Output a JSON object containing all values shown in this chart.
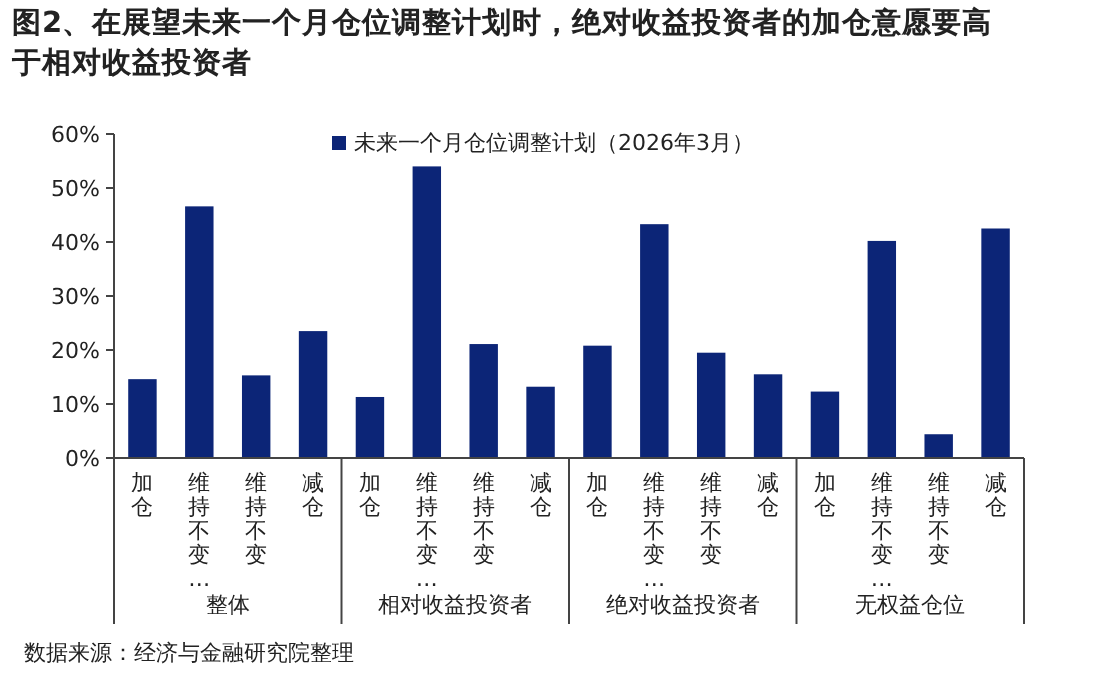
{
  "chart_data": {
    "type": "bar",
    "title": "图2、在展望未来一个月仓位调整计划时，绝对收益投资者的加仓意愿要高于相对收益投资者",
    "categories": [
      "加仓",
      "维持不变…",
      "维持不变",
      "减仓",
      "加仓",
      "维持不变…",
      "维持不变",
      "减仓",
      "加仓",
      "维持不变…",
      "维持不变",
      "减仓",
      "加仓",
      "维持不变…",
      "维持不变",
      "减仓"
    ],
    "series": [
      {
        "name": "未来一个月仓位调整计划（2026年3月）",
        "color": "#0c2577",
        "values": [
          14.6,
          46.6,
          15.3,
          23.5,
          11.3,
          54.0,
          21.1,
          13.2,
          20.8,
          43.3,
          19.5,
          15.5,
          12.3,
          40.2,
          4.4,
          42.5
        ]
      }
    ],
    "ylim": [
      0,
      60
    ],
    "yticks": [
      {
        "value": 0,
        "label": "0%"
      },
      {
        "value": 10,
        "label": "10%"
      },
      {
        "value": 20,
        "label": "20%"
      },
      {
        "value": 30,
        "label": "30%"
      },
      {
        "value": 40,
        "label": "40%"
      },
      {
        "value": 50,
        "label": "50%"
      },
      {
        "value": 60,
        "label": "60%"
      }
    ],
    "grid": false,
    "legend": "top",
    "annotations": [
      "整体",
      "相对收益投资者",
      "绝对收益投资者",
      "无权益仓位",
      "数据来源：经济与金融研究院整理"
    ]
  }
}
